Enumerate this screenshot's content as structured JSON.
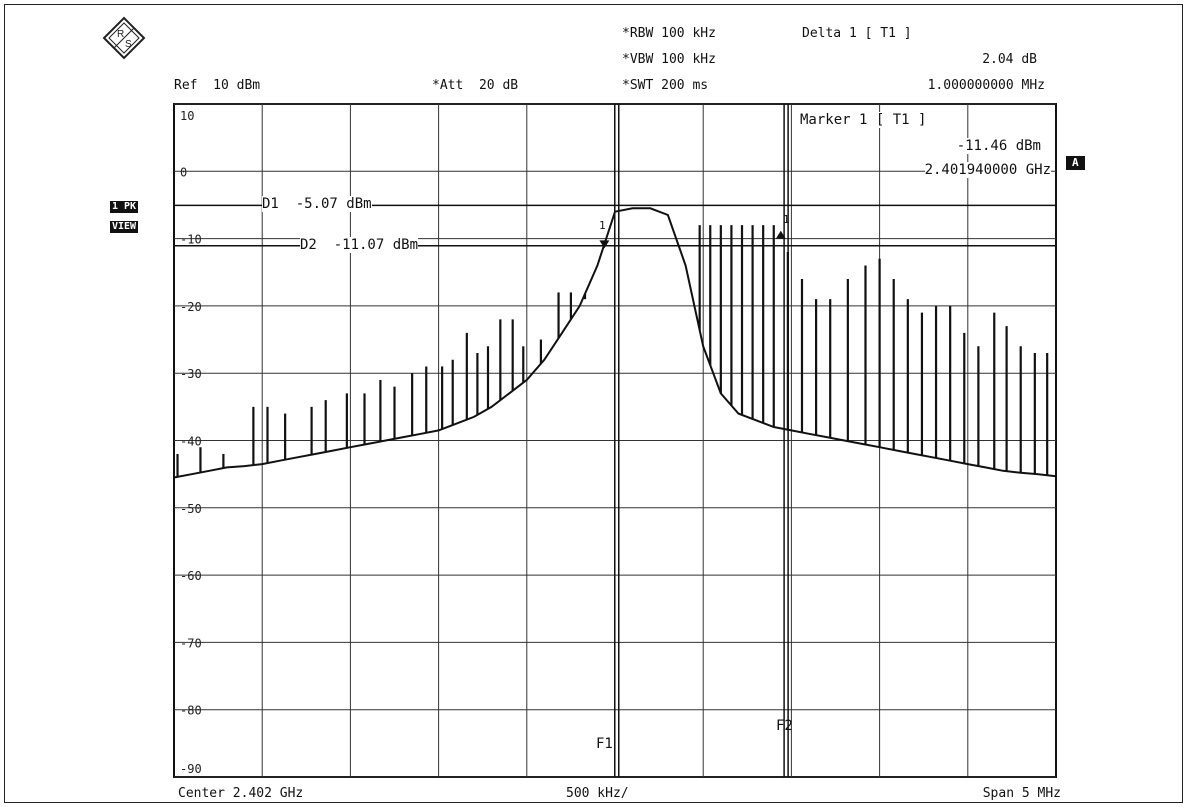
{
  "instrument": {
    "ref": "Ref  10 dBm",
    "att": "*Att  20 dB",
    "rbw": "*RBW 100 kHz",
    "vbw": "*VBW 100 kHz",
    "swt": "*SWT 200 ms",
    "delta_label": "Delta 1 [ T1 ]",
    "delta_value": "2.04 dB",
    "delta_freq": "1.000000000 MHz",
    "marker_label": "Marker 1 [ T1 ]",
    "marker_value": "-11.46 dBm",
    "marker_freq": "2.401940000 GHz",
    "center": "Center 2.402 GHz",
    "div": "500 kHz/",
    "span": "Span 5 MHz",
    "trace_badge_1": "1 PK",
    "trace_badge_2": "VIEW",
    "side_badge": "A",
    "f1": "F1",
    "f2": "F2",
    "m1": "1",
    "m2": "1"
  },
  "chart_data": {
    "type": "line",
    "x_unit": "GHz",
    "y_unit": "dBm",
    "xlim": [
      2.3995,
      2.4045
    ],
    "ylim": [
      -90,
      10
    ],
    "grid": true,
    "y_ticks": [
      10,
      0,
      -10,
      -20,
      -30,
      -40,
      -50,
      -60,
      -70,
      -80,
      -90
    ],
    "y_tick_labels": [
      "10",
      "0",
      "-10",
      "-20",
      "-30",
      "-40",
      "-50",
      "-60",
      "-70",
      "-80",
      "-90"
    ],
    "display_lines": [
      {
        "name": "D1",
        "label": "D1  -5.07 dBm",
        "value": -5.07
      },
      {
        "name": "D2",
        "label": "D2  -11.07 dBm",
        "value": -11.07
      }
    ],
    "frequency_lines": [
      {
        "name": "F1",
        "x": 2.40201
      },
      {
        "name": "F2",
        "x": 2.40297
      }
    ],
    "markers": [
      {
        "name": "Marker 1",
        "x": 2.40194,
        "y": -11.46
      },
      {
        "name": "Delta 1",
        "x": 2.40294,
        "y": -9.42
      }
    ],
    "series": [
      {
        "x": [
          2.3995,
          2.3996,
          2.3997,
          2.3998,
          2.3999,
          2.4,
          2.4001,
          2.4002,
          2.4003,
          2.4004,
          2.4005,
          2.4006,
          2.4007,
          2.4008,
          2.4009,
          2.401,
          2.4011,
          2.4012,
          2.4013,
          2.4014,
          2.4015,
          2.4016,
          2.4017,
          2.4018,
          2.4019,
          2.402,
          2.4021,
          2.4022,
          2.4023,
          2.4024,
          2.4025,
          2.4026,
          2.4027,
          2.4028,
          2.4029,
          2.403,
          2.4031,
          2.4032,
          2.4033,
          2.4034,
          2.4035,
          2.4036,
          2.4037,
          2.4038,
          2.4039,
          2.404,
          2.4041,
          2.4042,
          2.4043,
          2.4044,
          2.4045
        ],
        "y": [
          -45.5,
          -45,
          -44.5,
          -44,
          -43.8,
          -43.5,
          -43,
          -42.5,
          -42,
          -41.5,
          -41,
          -40.5,
          -40,
          -39.5,
          -39,
          -38.5,
          -37.5,
          -36.5,
          -35,
          -33,
          -31,
          -28,
          -24,
          -20,
          -14,
          -6,
          -5.5,
          -5.5,
          -6.5,
          -14,
          -26,
          -33,
          -36,
          -37,
          -38,
          -38.5,
          -39,
          -39.5,
          -40,
          -40.5,
          -41,
          -41.5,
          -42,
          -42.5,
          -43,
          -43.5,
          -44,
          -44.5,
          -44.8,
          -45,
          -45.3
        ]
      }
    ],
    "spurs": [
      {
        "x": 2.39952,
        "y": -42
      },
      {
        "x": 2.39965,
        "y": -41
      },
      {
        "x": 2.39978,
        "y": -42
      },
      {
        "x": 2.39995,
        "y": -35
      },
      {
        "x": 2.40003,
        "y": -35
      },
      {
        "x": 2.40013,
        "y": -36
      },
      {
        "x": 2.40028,
        "y": -35
      },
      {
        "x": 2.40036,
        "y": -34
      },
      {
        "x": 2.40048,
        "y": -33
      },
      {
        "x": 2.40058,
        "y": -33
      },
      {
        "x": 2.40067,
        "y": -31
      },
      {
        "x": 2.40075,
        "y": -32
      },
      {
        "x": 2.40085,
        "y": -30
      },
      {
        "x": 2.40093,
        "y": -29
      },
      {
        "x": 2.40102,
        "y": -29
      },
      {
        "x": 2.40108,
        "y": -28
      },
      {
        "x": 2.40116,
        "y": -24
      },
      {
        "x": 2.40122,
        "y": -27
      },
      {
        "x": 2.40128,
        "y": -26
      },
      {
        "x": 2.40135,
        "y": -22
      },
      {
        "x": 2.40142,
        "y": -22
      },
      {
        "x": 2.40148,
        "y": -26
      },
      {
        "x": 2.40158,
        "y": -25
      },
      {
        "x": 2.40168,
        "y": -18
      },
      {
        "x": 2.40175,
        "y": -18
      },
      {
        "x": 2.40183,
        "y": -19
      },
      {
        "x": 2.40248,
        "y": -8
      },
      {
        "x": 2.40254,
        "y": -8
      },
      {
        "x": 2.4026,
        "y": -8
      },
      {
        "x": 2.40266,
        "y": -8
      },
      {
        "x": 2.40272,
        "y": -8
      },
      {
        "x": 2.40278,
        "y": -8
      },
      {
        "x": 2.40284,
        "y": -8
      },
      {
        "x": 2.4029,
        "y": -8
      },
      {
        "x": 2.40298,
        "y": -12
      },
      {
        "x": 2.40306,
        "y": -16
      },
      {
        "x": 2.40314,
        "y": -19
      },
      {
        "x": 2.40322,
        "y": -19
      },
      {
        "x": 2.40332,
        "y": -16
      },
      {
        "x": 2.40342,
        "y": -14
      },
      {
        "x": 2.4035,
        "y": -13
      },
      {
        "x": 2.40358,
        "y": -16
      },
      {
        "x": 2.40366,
        "y": -19
      },
      {
        "x": 2.40374,
        "y": -21
      },
      {
        "x": 2.40382,
        "y": -20
      },
      {
        "x": 2.4039,
        "y": -20
      },
      {
        "x": 2.40398,
        "y": -24
      },
      {
        "x": 2.40406,
        "y": -26
      },
      {
        "x": 2.40415,
        "y": -21
      },
      {
        "x": 2.40422,
        "y": -23
      },
      {
        "x": 2.4043,
        "y": -26
      },
      {
        "x": 2.40438,
        "y": -27
      },
      {
        "x": 2.40445,
        "y": -27
      }
    ]
  }
}
